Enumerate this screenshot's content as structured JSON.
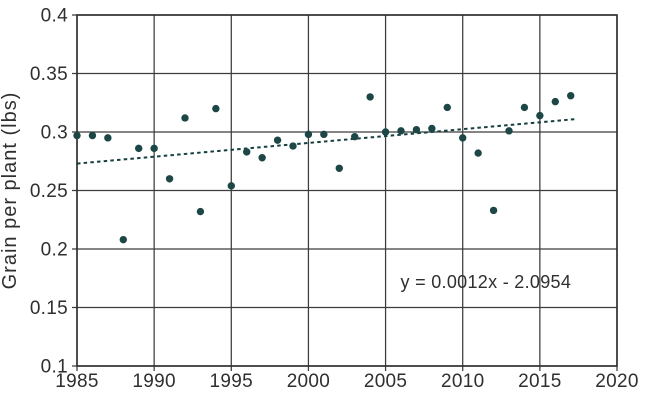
{
  "chart_data": {
    "type": "scatter",
    "title": "",
    "xlabel": "",
    "ylabel": "Grain per plant (lbs)",
    "xlim": [
      1985,
      2020
    ],
    "ylim": [
      0.1,
      0.4
    ],
    "grid": true,
    "legend": "none",
    "x_ticks": [
      1985,
      1990,
      1995,
      2000,
      2005,
      2010,
      2015,
      2020
    ],
    "x_tick_labels": [
      "1985",
      "1990",
      "1995",
      "2000",
      "2005",
      "2010",
      "2015",
      "2020"
    ],
    "y_ticks": [
      0.4,
      0.35,
      0.3,
      0.25,
      0.2,
      0.15,
      0.1
    ],
    "y_tick_labels": [
      "0.4",
      "0.35",
      "0.3",
      "0.25",
      "0.2",
      "0.15",
      "0.1"
    ],
    "series": [
      {
        "name": "Grain per plant",
        "x": [
          1985,
          1986,
          1987,
          1988,
          1989,
          1990,
          1991,
          1992,
          1993,
          1994,
          1995,
          1996,
          1997,
          1998,
          1999,
          2000,
          2001,
          2002,
          2003,
          2004,
          2005,
          2006,
          2007,
          2008,
          2009,
          2010,
          2011,
          2012,
          2013,
          2014,
          2015,
          2016,
          2017
        ],
        "y": [
          0.297,
          0.297,
          0.295,
          0.208,
          0.286,
          0.286,
          0.26,
          0.312,
          0.232,
          0.32,
          0.254,
          0.283,
          0.278,
          0.293,
          0.288,
          0.298,
          0.298,
          0.269,
          0.296,
          0.33,
          0.3,
          0.301,
          0.302,
          0.303,
          0.321,
          0.295,
          0.282,
          0.233,
          0.301,
          0.321,
          0.314,
          0.326,
          0.331
        ]
      }
    ],
    "trendline": {
      "style": "dotted",
      "x_start": 1985,
      "y_start": 0.273,
      "x_end": 2017.3,
      "y_end": 0.311,
      "equation": "y = 0.0012x - 2.0954"
    },
    "annotation": {
      "text": "y = 0.0012x - 2.0954",
      "x": 2011.5,
      "y": 0.172
    },
    "colors": {
      "point": "#1d4746",
      "trend": "#16403f",
      "gridline": "#3c3c3c",
      "border": "#2e2e2e",
      "text": "#2f2f2f",
      "background": "#ffffff"
    }
  }
}
